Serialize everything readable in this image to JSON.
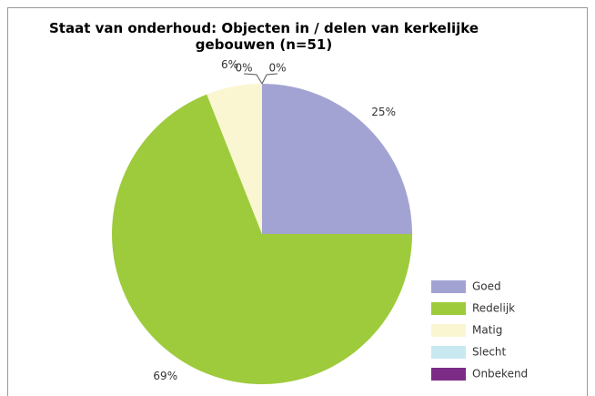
{
  "chart_data": {
    "type": "pie",
    "title": "Staat van onderhoud: Objecten in / delen van kerkelijke gebouwen (n=51)",
    "categories": [
      "Goed",
      "Redelijk",
      "Matig",
      "Slecht",
      "Onbekend"
    ],
    "values": [
      25,
      69,
      6,
      0,
      0
    ],
    "value_labels": [
      "25%",
      "69%",
      "6%",
      "0%",
      "0%"
    ],
    "colors": [
      "#a3a3d3",
      "#9ecb3c",
      "#faf6d2",
      "#c9e9f1",
      "#7c2b87"
    ],
    "legend": "right"
  }
}
